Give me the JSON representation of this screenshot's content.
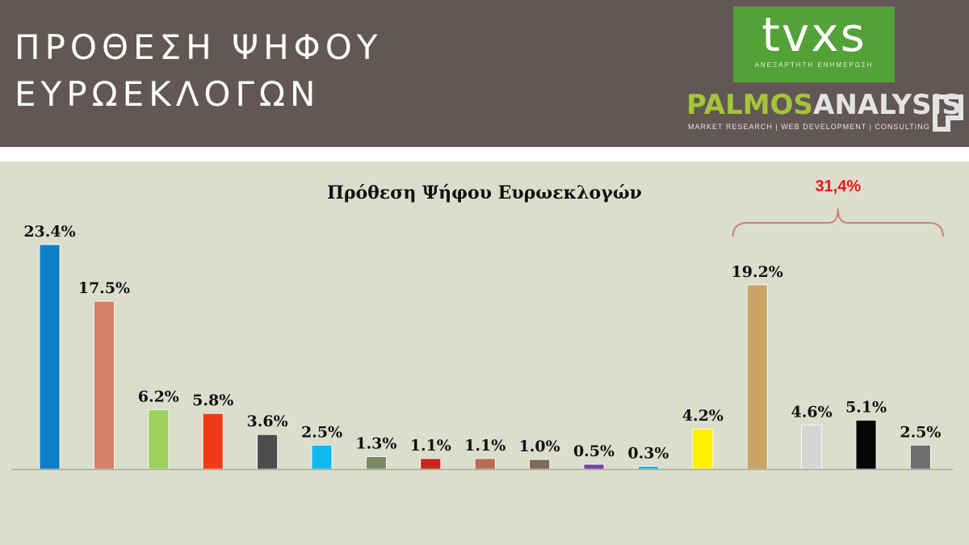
{
  "header": {
    "title_line1": "ΠΡΟΘΕΣΗ ΨΗΦΟΥ",
    "title_line2": "ΕΥΡΩΕΚΛΟΓΩΝ",
    "background": "#625755"
  },
  "logos": {
    "tvxs": {
      "text": "tvxs",
      "tagline": "ΑΝΕΞΑΡΤΗΤΗ ΕΝΗΜΕΡΩΣΗ",
      "color": "#52a237"
    },
    "palmos": {
      "word1": "PALMOS",
      "word2": "ANALYSIS",
      "tagline": "MARKET RESEARCH | WEB DEVELOPMENT | CONSULTING",
      "color": "#a4c53a"
    }
  },
  "chart_data": {
    "type": "bar",
    "title": "Πρόθεση Ψήφου Ευρωεκλογών",
    "xlabel": "",
    "ylabel": "",
    "ylim": [
      0,
      25
    ],
    "grid": false,
    "legend": "none",
    "values": [
      23.4,
      17.5,
      6.2,
      5.8,
      3.6,
      2.5,
      1.3,
      1.1,
      1.1,
      1.0,
      0.5,
      0.3,
      4.2,
      19.2,
      4.6,
      5.1,
      2.5
    ],
    "value_labels": [
      "23.4%",
      "17.5%",
      "6.2%",
      "5.8%",
      "3.6%",
      "2.5%",
      "1.3%",
      "1.1%",
      "1.1%",
      "1.0%",
      "0.5%",
      "0.3%",
      "4.2%",
      "19.2%",
      "4.6%",
      "5.1%",
      "2.5%"
    ],
    "colors": [
      "#0a7ec6",
      "#d5806a",
      "#9ed25f",
      "#f23a1a",
      "#4d4d4d",
      "#10b9ee",
      "#7c8a64",
      "#c8261d",
      "#b86c57",
      "#7b6b58",
      "#7a3da0",
      "#22aee6",
      "#fff200",
      "#c9a466",
      "#d6d6d6",
      "#050505",
      "#6f6f6f"
    ],
    "annotation": {
      "label": "31,4%",
      "from_bar": 13,
      "to_bar": 16,
      "color": "#e8151b",
      "bracket_color": "#d08070"
    }
  }
}
